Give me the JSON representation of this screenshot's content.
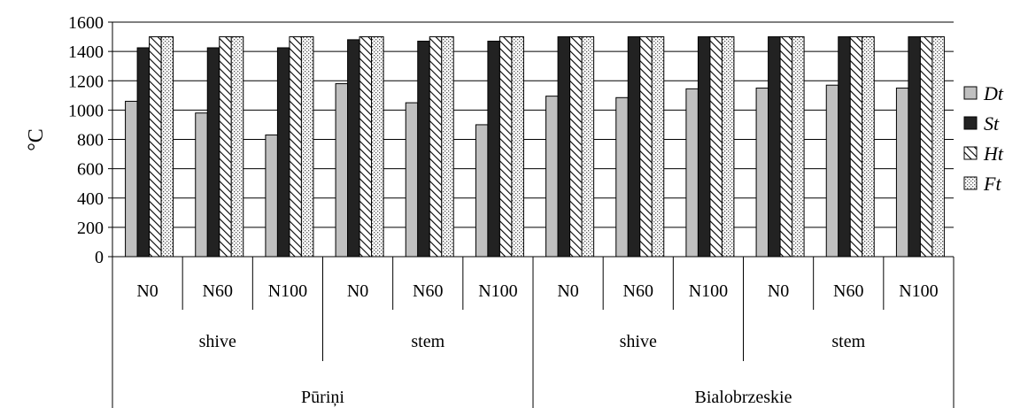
{
  "chart_data": {
    "type": "bar",
    "ylabel": "°C",
    "ylim": [
      0,
      1600
    ],
    "yticks": [
      0,
      200,
      400,
      600,
      800,
      1000,
      1200,
      1400,
      1600
    ],
    "grid": true,
    "legend_position": "right",
    "categories": [
      "N0",
      "N60",
      "N100",
      "N0",
      "N60",
      "N100",
      "N0",
      "N60",
      "N100",
      "N0",
      "N60",
      "N100"
    ],
    "part_groups": [
      {
        "label": "shive",
        "span": 3
      },
      {
        "label": "stem",
        "span": 3
      },
      {
        "label": "shive",
        "span": 3
      },
      {
        "label": "stem",
        "span": 3
      }
    ],
    "variety_groups": [
      {
        "label": "Pūriņi",
        "span": 6
      },
      {
        "label": "Bialobrzeskie",
        "span": 6
      }
    ],
    "series": [
      {
        "name": "Dt",
        "pattern": "solid-light",
        "color": "#c0c0c0",
        "values": [
          1060,
          980,
          830,
          1180,
          1050,
          900,
          1095,
          1085,
          1145,
          1150,
          1170,
          1150
        ]
      },
      {
        "name": "St",
        "pattern": "solid-dark",
        "color": "#222222",
        "values": [
          1425,
          1425,
          1425,
          1480,
          1470,
          1470,
          1500,
          1500,
          1500,
          1500,
          1500,
          1500
        ]
      },
      {
        "name": "Ht",
        "pattern": "diagonal-hatch",
        "color": "#ffffff",
        "values": [
          1500,
          1500,
          1500,
          1500,
          1500,
          1500,
          1500,
          1500,
          1500,
          1500,
          1500,
          1500
        ]
      },
      {
        "name": "Ft",
        "pattern": "dotted",
        "color": "#ffffff",
        "values": [
          1500,
          1500,
          1500,
          1500,
          1500,
          1500,
          1500,
          1500,
          1500,
          1500,
          1500,
          1500
        ]
      }
    ]
  }
}
